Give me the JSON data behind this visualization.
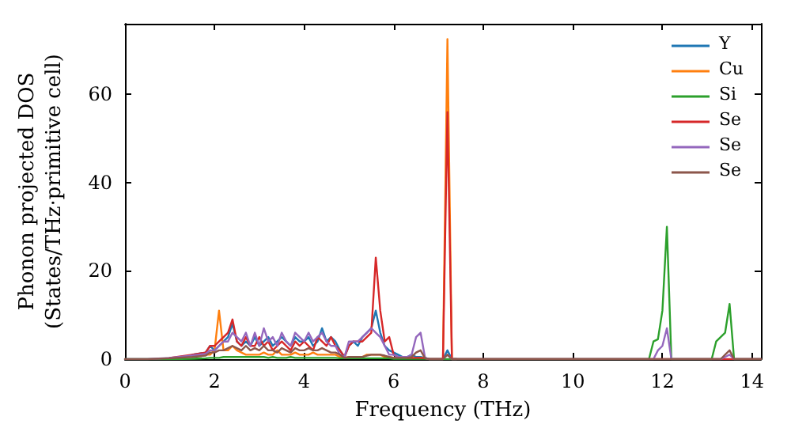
{
  "chart_data": {
    "type": "line",
    "xlabel": "Frequency (THz)",
    "ylabel": "Phonon projected DOS\n(States/THz·primitive cell)",
    "x": [
      0,
      0.5,
      1.0,
      1.5,
      1.8,
      1.9,
      2.0,
      2.1,
      2.2,
      2.3,
      2.4,
      2.5,
      2.6,
      2.7,
      2.8,
      2.9,
      3.0,
      3.1,
      3.2,
      3.3,
      3.4,
      3.5,
      3.6,
      3.7,
      3.8,
      3.9,
      4.0,
      4.1,
      4.2,
      4.3,
      4.4,
      4.5,
      4.6,
      4.7,
      4.8,
      4.9,
      5.0,
      5.1,
      5.2,
      5.3,
      5.4,
      5.5,
      5.6,
      5.7,
      5.8,
      5.9,
      6.0,
      6.1,
      6.2,
      6.3,
      6.4,
      6.5,
      6.6,
      6.7,
      6.8,
      6.9,
      7.0,
      7.1,
      7.2,
      7.3,
      7.4,
      11.7,
      11.8,
      11.9,
      12.0,
      12.1,
      12.2,
      12.9,
      13.0,
      13.1,
      13.2,
      13.3,
      13.4,
      13.5,
      13.6,
      14.2
    ],
    "series": [
      {
        "name": "Y",
        "color": "#1f77b4",
        "values": [
          null,
          null,
          null,
          1,
          1.5,
          3,
          2,
          3,
          4,
          5,
          8,
          4,
          3,
          4,
          3,
          5,
          3,
          4,
          5,
          3,
          4,
          5,
          4,
          3,
          5,
          4,
          4,
          5,
          3,
          4,
          7,
          4,
          5,
          4,
          2,
          0.5,
          3,
          4,
          3,
          5,
          6,
          7,
          11,
          6,
          3,
          2,
          1.5,
          1,
          0.5,
          0.5,
          1,
          0.5,
          0.5,
          0.3,
          0,
          0,
          0,
          0,
          2,
          0,
          0,
          null,
          null,
          null,
          null,
          null,
          null,
          null,
          null,
          null,
          null,
          null,
          null,
          null,
          null,
          null
        ]
      },
      {
        "name": "Cu",
        "color": "#ff7f0e",
        "values": [
          null,
          null,
          null,
          0.5,
          1,
          1,
          2,
          11,
          2,
          2,
          3,
          2,
          1.5,
          1,
          1,
          1,
          1,
          1.5,
          1,
          1,
          2,
          1,
          1,
          1,
          1.5,
          1,
          1,
          1,
          1.5,
          1,
          1,
          1,
          1,
          1,
          0.5,
          0.3,
          0.5,
          0.5,
          0.5,
          0.5,
          1,
          1,
          1,
          1,
          0.5,
          0.5,
          0.3,
          0.3,
          0.2,
          0.2,
          0.2,
          0.2,
          0.3,
          0.2,
          0,
          0,
          0,
          0,
          72.5,
          0,
          0,
          null,
          null,
          null,
          null,
          null,
          null,
          null,
          null,
          null,
          null,
          null,
          null,
          null,
          null,
          null
        ]
      },
      {
        "name": "Si",
        "color": "#2ca02c",
        "values": [
          0,
          0,
          0,
          0.1,
          0.2,
          0.3,
          0.3,
          0.3,
          0.5,
          0.5,
          0.5,
          0.5,
          0.5,
          0.5,
          0.5,
          0.5,
          0.5,
          0.5,
          0.3,
          0.5,
          0.3,
          0.3,
          0.3,
          0.5,
          0.3,
          0.3,
          0.3,
          0.3,
          0.3,
          0.3,
          0.3,
          0.3,
          0.3,
          0.3,
          0.2,
          0.2,
          0.2,
          0.2,
          0.2,
          0.2,
          0.2,
          0.2,
          0.2,
          0.2,
          0.2,
          0.2,
          0.1,
          0.1,
          0.1,
          0.1,
          0.1,
          0.1,
          0.1,
          0.1,
          0,
          0,
          0,
          0,
          0,
          0,
          0,
          0,
          4,
          4.5,
          11,
          30,
          0,
          0,
          0,
          0,
          4,
          5,
          6,
          12.5,
          0,
          0
        ]
      },
      {
        "name": "Se",
        "color": "#d62728",
        "values": [
          null,
          null,
          0.3,
          1,
          1.5,
          3,
          3,
          4,
          5,
          6,
          9,
          4,
          3,
          5,
          3,
          3,
          5,
          3,
          4,
          2,
          3,
          4,
          3,
          2,
          4,
          3,
          4,
          3,
          2,
          5,
          4,
          3,
          5,
          3,
          2,
          0.5,
          3,
          4,
          4,
          4,
          5,
          6,
          23,
          11,
          4,
          5,
          1,
          0.5,
          0.5,
          0.3,
          0.3,
          0.3,
          0.3,
          0.2,
          0,
          0,
          0,
          0,
          56,
          0,
          0,
          0,
          0,
          0,
          0,
          0,
          0,
          0,
          0,
          0,
          0,
          0,
          0,
          0,
          0,
          0
        ]
      },
      {
        "name": "Se",
        "color": "#9467bd",
        "values": [
          0,
          0,
          0.3,
          0.8,
          1.2,
          2,
          2,
          3,
          4,
          4,
          6,
          5,
          4,
          6,
          3,
          6,
          3,
          7,
          4,
          5,
          3,
          6,
          4,
          3,
          6,
          5,
          4,
          6,
          4,
          5,
          6,
          4,
          3,
          3,
          1,
          0.5,
          4,
          4,
          4,
          5,
          6,
          7,
          6,
          5,
          3,
          1,
          1,
          0.5,
          0.5,
          0.5,
          1,
          5,
          6,
          0.3,
          0,
          0,
          0,
          0,
          1,
          0,
          0,
          0,
          0,
          2,
          3,
          7,
          0,
          0,
          0,
          0,
          0,
          0,
          0.5,
          1,
          0,
          0
        ]
      },
      {
        "name": "Se",
        "color": "#8c564b",
        "values": [
          0,
          0,
          0.2,
          0.5,
          0.8,
          1.5,
          1.5,
          2,
          2,
          2.5,
          3,
          2.5,
          2,
          3,
          2,
          2.5,
          2,
          3,
          2,
          2,
          1.5,
          2.5,
          2,
          1.5,
          2.5,
          2,
          2,
          2.5,
          2,
          2,
          2.5,
          2,
          1.5,
          1.5,
          1,
          0.3,
          0.5,
          0.5,
          0.5,
          0.5,
          0.8,
          1,
          1,
          1,
          0.8,
          0.5,
          0.3,
          0.3,
          0.3,
          0.3,
          0.5,
          1.5,
          2,
          0.2,
          0,
          0,
          0,
          0,
          1,
          0,
          0,
          0,
          0,
          0,
          0,
          0,
          0,
          0,
          0,
          0,
          0,
          0,
          1,
          2,
          0,
          0
        ]
      }
    ],
    "xlim": [
      0,
      14.2
    ],
    "xticks": [
      0,
      2,
      4,
      6,
      8,
      10,
      12,
      14
    ],
    "ylim": [
      0,
      76
    ],
    "yticks": [
      0,
      20,
      40,
      60
    ],
    "legend": "top right",
    "grid": false,
    "marker": "none",
    "line_style": "solid"
  }
}
